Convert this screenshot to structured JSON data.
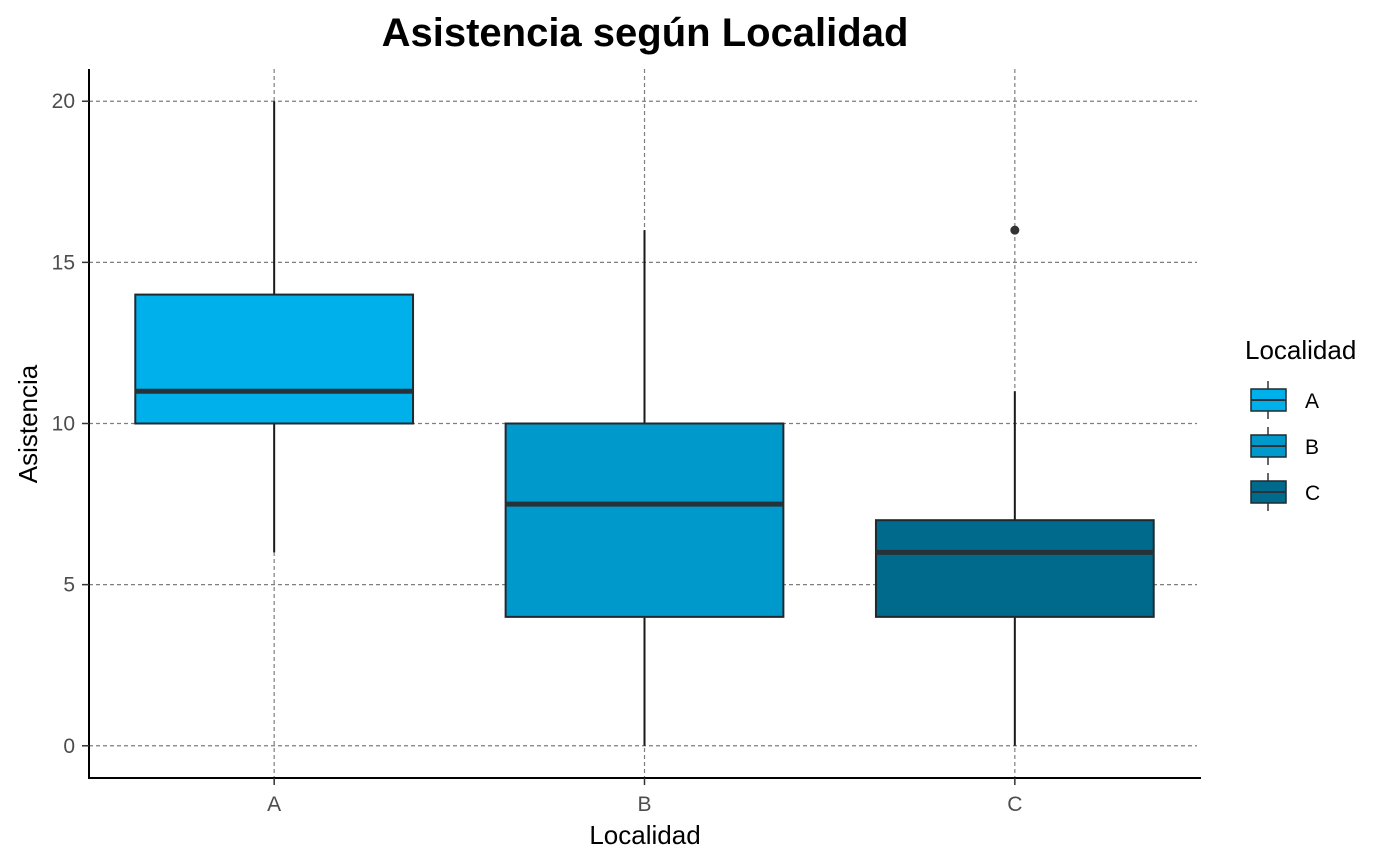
{
  "chart_data": {
    "type": "boxplot",
    "title": "Asistencia según Localidad",
    "xlabel": "Localidad",
    "ylabel": "Asistencia",
    "categories": [
      "A",
      "B",
      "C"
    ],
    "ylim": [
      -1,
      21
    ],
    "yticks": [
      0,
      5,
      10,
      15,
      20
    ],
    "grid": true,
    "boxes": [
      {
        "category": "A",
        "whisker_low": 6,
        "q1": 10,
        "median": 11,
        "q3": 14,
        "whisker_high": 20,
        "outliers": [],
        "color": "#00B0EB"
      },
      {
        "category": "B",
        "whisker_low": 0,
        "q1": 4,
        "median": 7.5,
        "q3": 10,
        "whisker_high": 16,
        "outliers": [],
        "color": "#0099CC"
      },
      {
        "category": "C",
        "whisker_low": 0,
        "q1": 4,
        "median": 6,
        "q3": 7,
        "whisker_high": 11,
        "outliers": [
          16
        ],
        "color": "#006A8C"
      }
    ],
    "legend": {
      "title": "Localidad",
      "position": "right",
      "entries": [
        "A",
        "B",
        "C"
      ]
    }
  },
  "colors": {
    "grid": "#7f7f7f",
    "axis": "#000000",
    "box_stroke": "#1f2a30",
    "median": "#263238",
    "whisker": "#1a1a1a"
  }
}
